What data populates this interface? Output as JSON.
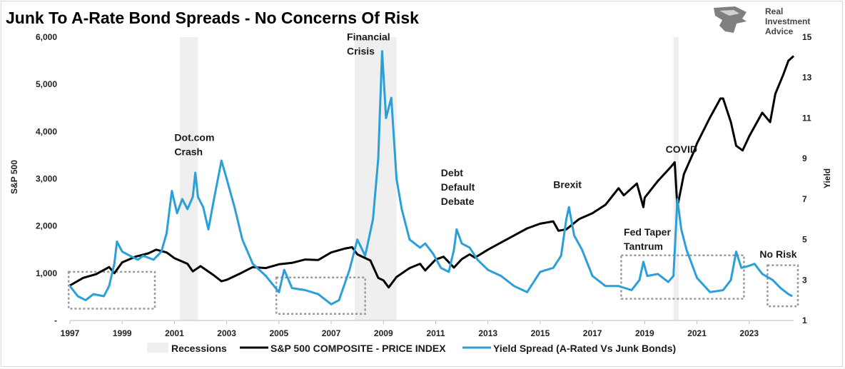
{
  "chart_data": {
    "type": "line",
    "title": "Junk To A-Rate Bond Spreads - No Concerns Of Risk",
    "ylabel_left": "S&P 500",
    "ylabel_right": "Yield",
    "ylim_left": [
      0,
      6000
    ],
    "ylim_right": [
      1,
      15
    ],
    "xlim": [
      1997,
      2024.7
    ],
    "x_ticks": [
      "1997",
      "1999",
      "2001",
      "2003",
      "2005",
      "2007",
      "2009",
      "2011",
      "2013",
      "2015",
      "2017",
      "2019",
      "2021",
      "2023"
    ],
    "y_left_ticks": [
      "-",
      "1,000",
      "2,000",
      "3,000",
      "4,000",
      "5,000",
      "6,000"
    ],
    "y_right_ticks": [
      "1",
      "3",
      "5",
      "7",
      "9",
      "11",
      "13",
      "15"
    ],
    "grid": false,
    "legend_position": "bottom",
    "recessions": [
      {
        "start": 2001.2,
        "end": 2001.9
      },
      {
        "start": 2007.9,
        "end": 2009.5
      },
      {
        "start": 2020.1,
        "end": 2020.3
      }
    ],
    "series": [
      {
        "name": "S&P 500 COMPOSITE - PRICE INDEX",
        "axis": "left",
        "color": "#000000",
        "points": [
          [
            1997.0,
            740
          ],
          [
            1997.5,
            900
          ],
          [
            1998.0,
            980
          ],
          [
            1998.5,
            1130
          ],
          [
            1998.7,
            1000
          ],
          [
            1999.0,
            1230
          ],
          [
            1999.5,
            1350
          ],
          [
            2000.0,
            1420
          ],
          [
            2000.3,
            1500
          ],
          [
            2000.7,
            1440
          ],
          [
            2001.0,
            1320
          ],
          [
            2001.5,
            1200
          ],
          [
            2001.7,
            1040
          ],
          [
            2002.0,
            1150
          ],
          [
            2002.5,
            960
          ],
          [
            2002.8,
            830
          ],
          [
            2003.0,
            860
          ],
          [
            2003.5,
            990
          ],
          [
            2004.0,
            1130
          ],
          [
            2004.5,
            1110
          ],
          [
            2005.0,
            1190
          ],
          [
            2005.5,
            1220
          ],
          [
            2006.0,
            1290
          ],
          [
            2006.5,
            1280
          ],
          [
            2007.0,
            1440
          ],
          [
            2007.5,
            1520
          ],
          [
            2007.8,
            1550
          ],
          [
            2008.0,
            1400
          ],
          [
            2008.5,
            1270
          ],
          [
            2008.8,
            900
          ],
          [
            2009.0,
            850
          ],
          [
            2009.2,
            700
          ],
          [
            2009.5,
            920
          ],
          [
            2010.0,
            1110
          ],
          [
            2010.4,
            1200
          ],
          [
            2010.6,
            1060
          ],
          [
            2011.0,
            1290
          ],
          [
            2011.3,
            1350
          ],
          [
            2011.7,
            1120
          ],
          [
            2012.0,
            1300
          ],
          [
            2012.3,
            1400
          ],
          [
            2012.5,
            1330
          ],
          [
            2013.0,
            1500
          ],
          [
            2013.5,
            1650
          ],
          [
            2014.0,
            1800
          ],
          [
            2014.5,
            1950
          ],
          [
            2015.0,
            2050
          ],
          [
            2015.5,
            2100
          ],
          [
            2015.7,
            1900
          ],
          [
            2016.0,
            1930
          ],
          [
            2016.5,
            2150
          ],
          [
            2017.0,
            2270
          ],
          [
            2017.5,
            2450
          ],
          [
            2018.0,
            2800
          ],
          [
            2018.2,
            2650
          ],
          [
            2018.7,
            2900
          ],
          [
            2018.95,
            2400
          ],
          [
            2019.0,
            2600
          ],
          [
            2019.5,
            2950
          ],
          [
            2020.0,
            3250
          ],
          [
            2020.15,
            3350
          ],
          [
            2020.25,
            2400
          ],
          [
            2020.5,
            3100
          ],
          [
            2020.9,
            3600
          ],
          [
            2021.0,
            3750
          ],
          [
            2021.5,
            4300
          ],
          [
            2021.9,
            4700
          ],
          [
            2022.0,
            4700
          ],
          [
            2022.3,
            4200
          ],
          [
            2022.5,
            3700
          ],
          [
            2022.75,
            3600
          ],
          [
            2023.0,
            3900
          ],
          [
            2023.5,
            4400
          ],
          [
            2023.8,
            4200
          ],
          [
            2024.0,
            4800
          ],
          [
            2024.3,
            5200
          ],
          [
            2024.5,
            5500
          ],
          [
            2024.7,
            5600
          ]
        ]
      },
      {
        "name": "Yield Spread (A-Rated Vs Junk Bonds)",
        "axis": "right",
        "color": "#2a9fd8",
        "points": [
          [
            1997.0,
            2.7
          ],
          [
            1997.3,
            2.2
          ],
          [
            1997.6,
            2.0
          ],
          [
            1997.9,
            2.3
          ],
          [
            1998.3,
            2.2
          ],
          [
            1998.5,
            2.7
          ],
          [
            1998.7,
            3.8
          ],
          [
            1998.8,
            4.9
          ],
          [
            1999.0,
            4.4
          ],
          [
            1999.3,
            4.2
          ],
          [
            1999.6,
            4.0
          ],
          [
            1999.8,
            4.2
          ],
          [
            2000.2,
            4.0
          ],
          [
            2000.5,
            4.4
          ],
          [
            2000.7,
            5.3
          ],
          [
            2000.9,
            7.4
          ],
          [
            2001.1,
            6.3
          ],
          [
            2001.3,
            7.0
          ],
          [
            2001.5,
            6.5
          ],
          [
            2001.7,
            7.1
          ],
          [
            2001.8,
            8.3
          ],
          [
            2001.9,
            7.1
          ],
          [
            2002.1,
            6.6
          ],
          [
            2002.3,
            5.5
          ],
          [
            2002.5,
            6.9
          ],
          [
            2002.8,
            8.9
          ],
          [
            2003.0,
            8.0
          ],
          [
            2003.3,
            6.6
          ],
          [
            2003.6,
            5.0
          ],
          [
            2004.0,
            3.8
          ],
          [
            2004.5,
            3.2
          ],
          [
            2005.0,
            2.4
          ],
          [
            2005.2,
            3.5
          ],
          [
            2005.5,
            2.6
          ],
          [
            2006.0,
            2.5
          ],
          [
            2006.5,
            2.3
          ],
          [
            2007.0,
            1.8
          ],
          [
            2007.3,
            2.0
          ],
          [
            2007.7,
            3.5
          ],
          [
            2008.0,
            5.0
          ],
          [
            2008.3,
            4.2
          ],
          [
            2008.6,
            6.0
          ],
          [
            2008.8,
            9.0
          ],
          [
            2008.95,
            14.3
          ],
          [
            2009.1,
            11.0
          ],
          [
            2009.3,
            12.0
          ],
          [
            2009.5,
            8.0
          ],
          [
            2009.7,
            6.5
          ],
          [
            2010.0,
            5.0
          ],
          [
            2010.4,
            4.6
          ],
          [
            2010.6,
            4.8
          ],
          [
            2010.9,
            4.3
          ],
          [
            2011.2,
            3.6
          ],
          [
            2011.5,
            3.4
          ],
          [
            2011.7,
            4.5
          ],
          [
            2011.8,
            5.5
          ],
          [
            2012.0,
            4.8
          ],
          [
            2012.3,
            4.6
          ],
          [
            2012.6,
            4.0
          ],
          [
            2013.0,
            3.5
          ],
          [
            2013.5,
            3.2
          ],
          [
            2014.0,
            2.7
          ],
          [
            2014.5,
            2.4
          ],
          [
            2015.0,
            3.4
          ],
          [
            2015.5,
            3.6
          ],
          [
            2015.8,
            4.2
          ],
          [
            2016.0,
            6.0
          ],
          [
            2016.1,
            6.6
          ],
          [
            2016.3,
            5.2
          ],
          [
            2016.6,
            4.5
          ],
          [
            2017.0,
            3.2
          ],
          [
            2017.5,
            2.7
          ],
          [
            2018.0,
            2.7
          ],
          [
            2018.5,
            2.5
          ],
          [
            2018.8,
            3.0
          ],
          [
            2018.95,
            3.9
          ],
          [
            2019.1,
            3.2
          ],
          [
            2019.5,
            3.3
          ],
          [
            2019.9,
            2.9
          ],
          [
            2020.1,
            3.2
          ],
          [
            2020.2,
            5.7
          ],
          [
            2020.25,
            7.0
          ],
          [
            2020.4,
            5.5
          ],
          [
            2020.6,
            4.5
          ],
          [
            2021.0,
            3.1
          ],
          [
            2021.5,
            2.4
          ],
          [
            2022.0,
            2.5
          ],
          [
            2022.3,
            3.0
          ],
          [
            2022.5,
            4.4
          ],
          [
            2022.7,
            3.6
          ],
          [
            2023.0,
            3.7
          ],
          [
            2023.2,
            3.8
          ],
          [
            2023.5,
            3.3
          ],
          [
            2023.9,
            3.0
          ],
          [
            2024.2,
            2.6
          ],
          [
            2024.5,
            2.3
          ],
          [
            2024.65,
            2.2
          ]
        ]
      }
    ],
    "annotations": [
      {
        "lines": [
          "Dot.com",
          "Crash"
        ],
        "x": 2001.0,
        "y_left": 3800
      },
      {
        "lines": [
          "Financial",
          "Crisis"
        ],
        "x": 2007.6,
        "y_left": 5930
      },
      {
        "lines": [
          "Debt",
          "Default",
          "Debate"
        ],
        "x": 2011.2,
        "y_left": 3050
      },
      {
        "lines": [
          "Brexit"
        ],
        "x": 2015.5,
        "y_left": 2800
      },
      {
        "lines": [
          "COVID"
        ],
        "x": 2019.8,
        "y_left": 3550
      },
      {
        "lines": [
          "Fed Taper",
          "Tantrum"
        ],
        "x": 2018.2,
        "y_left": 1800
      },
      {
        "lines": [
          "No Risk"
        ],
        "x": 2023.4,
        "y_left": 1330
      }
    ],
    "dotted_boxes": [
      {
        "x0": 1996.95,
        "x1": 2000.25,
        "y0_left": 250,
        "y1_left": 1030
      },
      {
        "x0": 2004.9,
        "x1": 2008.3,
        "y0_left": 140,
        "y1_left": 910
      },
      {
        "x0": 2018.1,
        "x1": 2022.8,
        "y0_left": 460,
        "y1_left": 1380
      },
      {
        "x0": 2023.7,
        "x1": 2025.1,
        "y0_left": 300,
        "y1_left": 1170
      }
    ],
    "legend": [
      {
        "label": "Recessions",
        "kind": "area",
        "color": "#efefef"
      },
      {
        "label": "S&P 500 COMPOSITE - PRICE INDEX",
        "kind": "line",
        "color": "#000000"
      },
      {
        "label": "Yield Spread (A-Rated Vs Junk Bonds)",
        "kind": "line",
        "color": "#2a9fd8"
      }
    ]
  },
  "logo": {
    "lines": [
      "Real",
      "Investment",
      "Advice"
    ],
    "icon": "eagle-icon"
  }
}
